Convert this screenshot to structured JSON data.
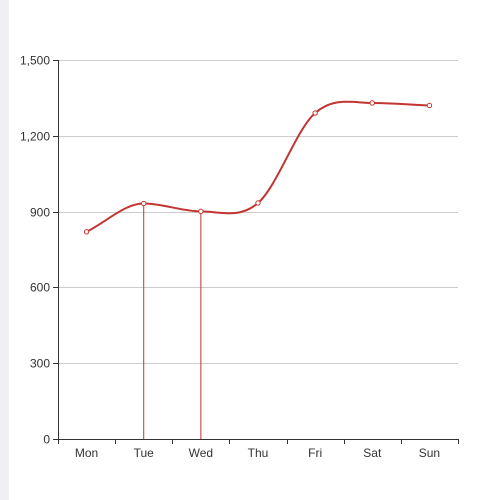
{
  "chart_data": {
    "type": "line",
    "smooth": true,
    "categories": [
      "Mon",
      "Tue",
      "Wed",
      "Thu",
      "Fri",
      "Sat",
      "Sun"
    ],
    "series": [
      {
        "values": [
          820,
          932,
          901,
          934,
          1290,
          1330,
          1320
        ],
        "color": "#c23531"
      }
    ],
    "ylim": [
      0,
      1500
    ],
    "yticks": [
      "0",
      "300",
      "600",
      "900",
      "1,200",
      "1,500"
    ],
    "ytick_values": [
      0,
      300,
      600,
      900,
      1200,
      1500
    ],
    "grid": true,
    "drop_lines_at": [
      "Tue",
      "Wed"
    ],
    "title": "",
    "xlabel": "",
    "ylabel": ""
  },
  "colors": {
    "line": "#c23531",
    "grid": "#cccccc",
    "axis": "#333333",
    "sidebar": "#f0f0f4"
  }
}
